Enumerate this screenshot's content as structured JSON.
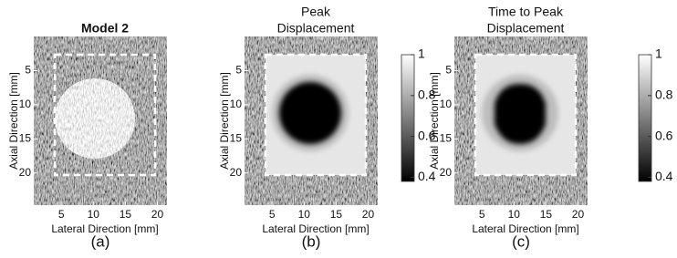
{
  "panels": [
    {
      "title": [
        "Model 2"
      ],
      "xlabel": "Lateral Direction [mm]",
      "ylabel": "Axial Direction [mm]",
      "xlim": [
        0.7,
        21.5
      ],
      "ylim": [
        0,
        24.7
      ],
      "xticks": [
        5,
        10,
        15,
        20
      ],
      "yticks": [
        5,
        10,
        15,
        20
      ],
      "caption": "(a)"
    },
    {
      "title": [
        "Peak",
        "Displacement"
      ],
      "xlabel": "Lateral Direction [mm]",
      "ylabel": "Axial Direction [mm]",
      "xlim": [
        0.7,
        21.5
      ],
      "ylim": [
        0,
        24.7
      ],
      "xticks": [
        5,
        10,
        15,
        20
      ],
      "yticks": [
        5,
        10,
        15,
        20
      ],
      "caption": "(b)",
      "clim": [
        0.38,
        1
      ],
      "colorbar_ticks": [
        1,
        0.8,
        0.6,
        0.4
      ]
    },
    {
      "title": [
        "Time to Peak",
        "Displacement"
      ],
      "xlabel": "Lateral Direction [mm]",
      "ylabel": "Axial Direction [mm]",
      "xlim": [
        0.7,
        21.5
      ],
      "ylim": [
        0,
        24.7
      ],
      "xticks": [
        5,
        10,
        15,
        20
      ],
      "yticks": [
        5,
        10,
        15,
        20
      ],
      "caption": "(c)",
      "clim": [
        0.38,
        1
      ],
      "colorbar_ticks": [
        1,
        0.8,
        0.6,
        0.4
      ]
    }
  ]
}
